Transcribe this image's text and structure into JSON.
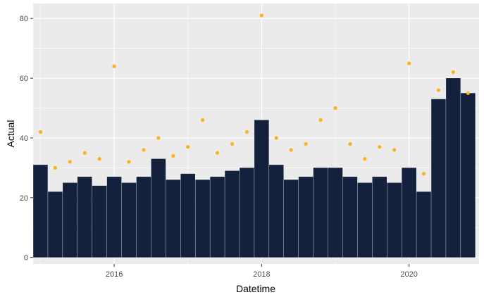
{
  "chart_data": {
    "type": "bar",
    "title": "",
    "xlabel": "Datetime",
    "ylabel": "Actual",
    "xlim": [
      2014.9,
      2020.95
    ],
    "ylim": [
      -2.2,
      85
    ],
    "x_ticks": [
      2016,
      2018,
      2020
    ],
    "x_tick_labels": [
      "2016",
      "2018",
      "2020"
    ],
    "y_ticks": [
      0,
      20,
      40,
      60,
      80
    ],
    "y_tick_labels": [
      "0",
      "20",
      "40",
      "60",
      "80"
    ],
    "grid": true,
    "legend": "none",
    "series": [
      {
        "kind": "bar",
        "color": "#14213d",
        "x": [
          2015.0,
          2015.2,
          2015.4,
          2015.6,
          2015.8,
          2016.0,
          2016.2,
          2016.4,
          2016.6,
          2016.8,
          2017.0,
          2017.2,
          2017.4,
          2017.6,
          2017.8,
          2018.0,
          2018.2,
          2018.4,
          2018.6,
          2018.8,
          2019.0,
          2019.2,
          2019.4,
          2019.6,
          2019.8,
          2020.0,
          2020.2,
          2020.4,
          2020.6,
          2020.8
        ],
        "values": [
          31,
          22,
          25,
          27,
          24,
          27,
          25,
          27,
          33,
          26,
          28,
          26,
          27,
          29,
          30,
          46,
          31,
          26,
          27,
          30,
          30,
          27,
          25,
          27,
          25,
          30,
          22,
          53,
          60,
          55
        ]
      },
      {
        "kind": "scatter",
        "color": "#fcb31b",
        "x": [
          2015.0,
          2015.2,
          2015.4,
          2015.6,
          2015.8,
          2016.0,
          2016.2,
          2016.4,
          2016.6,
          2016.8,
          2017.0,
          2017.2,
          2017.4,
          2017.6,
          2017.8,
          2018.0,
          2018.2,
          2018.4,
          2018.6,
          2018.8,
          2019.0,
          2019.2,
          2019.4,
          2019.6,
          2019.8,
          2020.0,
          2020.2,
          2020.4,
          2020.6,
          2020.8
        ],
        "values": [
          42,
          30,
          32,
          35,
          33,
          64,
          32,
          36,
          40,
          34,
          37,
          46,
          35,
          38,
          42,
          81,
          40,
          36,
          38,
          46,
          50,
          38,
          33,
          37,
          36,
          65,
          28,
          56,
          62,
          55
        ]
      }
    ]
  }
}
